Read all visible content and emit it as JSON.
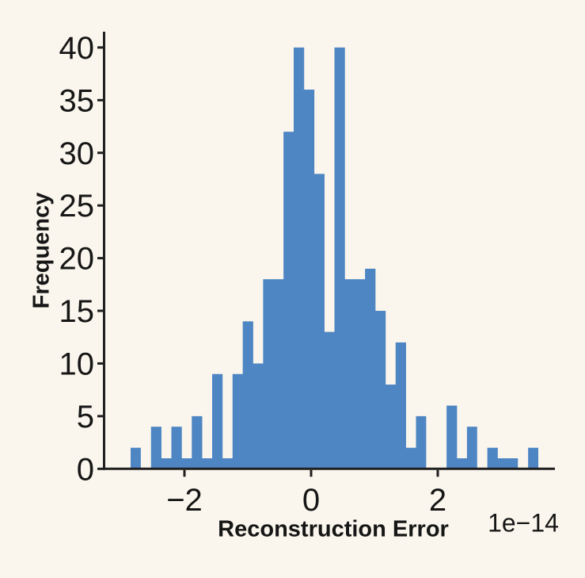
{
  "chart_data": {
    "type": "bar",
    "subtype": "histogram",
    "title": "",
    "xlabel": "Reconstruction Error",
    "ylabel": "Frequency",
    "x_offset_text": "1e−14",
    "x_ticks": [
      {
        "value": -2e-14,
        "label": "−2"
      },
      {
        "value": 0,
        "label": "0"
      },
      {
        "value": 2e-14,
        "label": "2"
      }
    ],
    "y_ticks": [
      {
        "value": 0,
        "label": "0"
      },
      {
        "value": 5,
        "label": "5"
      },
      {
        "value": 10,
        "label": "10"
      },
      {
        "value": 15,
        "label": "15"
      },
      {
        "value": 20,
        "label": "20"
      },
      {
        "value": 25,
        "label": "25"
      },
      {
        "value": 30,
        "label": "30"
      },
      {
        "value": 35,
        "label": "35"
      },
      {
        "value": 40,
        "label": "40"
      }
    ],
    "xlim": [
      -3.29e-14,
      3.85e-14
    ],
    "ylim": [
      0,
      41.5
    ],
    "bin_start": -2.85e-14,
    "bin_width": 1.609375e-15,
    "frequencies": [
      2,
      0,
      4,
      1,
      4,
      1,
      5,
      1,
      9,
      1,
      9,
      14,
      10,
      18,
      18,
      32,
      40,
      36,
      28,
      13,
      40,
      18,
      18,
      19,
      15,
      8,
      12,
      2,
      5,
      0,
      0,
      6,
      1,
      4,
      0,
      2,
      1,
      1,
      0,
      2
    ],
    "bar_color": "#4E86C4",
    "background_color": "#FBF6ED",
    "axis_color": "#1F1F1F",
    "text_color": "#161616",
    "grid": false,
    "legend_position": "none"
  }
}
